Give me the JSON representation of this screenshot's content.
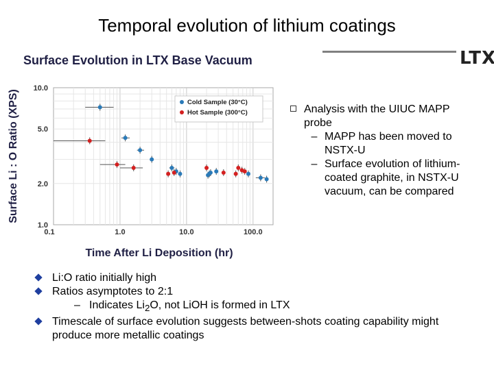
{
  "slide_title": "Temporal evolution of lithium coatings",
  "banner": {
    "title": "Surface Evolution in LTX Base Vacuum",
    "logo_text": "LTX"
  },
  "right_text": {
    "bullet": "Analysis with the UIUC MAPP probe",
    "subs": [
      "Surface evolution of lithium-coated graphite, in NSTX-U vacuum, can be compared",
      "MAPP has been moved to NSTX-U"
    ]
  },
  "bottom_list": {
    "item1": "Li:O ratio initially high",
    "item2": "Ratios asymptotes to 2:1",
    "sub_prefix": "Indicates Li",
    "sub_sub": "2",
    "sub_suffix": "O, not LiOH is formed in LTX",
    "item3": "Timescale of surface evolution suggests between-shots coating capability might produce more metallic coatings"
  },
  "colors": {
    "cold": "#2a7ab8",
    "hot": "#d42020",
    "frame": "#a8a8a8"
  },
  "chart_data": {
    "type": "scatter",
    "xlabel": "Time After Li Deposition (hr)",
    "ylabel": "Surface Li : O Ratio (XPS)",
    "x_scale": "log",
    "y_scale": "log",
    "xlim": [
      0.1,
      200
    ],
    "ylim": [
      1.0,
      10.0
    ],
    "x_ticks": [
      0.1,
      1.0,
      10.0,
      100.0
    ],
    "x_tick_labels": [
      "0.1",
      "1.0",
      "10.0",
      "100.0"
    ],
    "y_ticks": [
      1.0,
      2.0,
      5.0,
      10.0
    ],
    "y_tick_labels": [
      "1.0",
      "2.0",
      "5.0",
      "10.0"
    ],
    "grid": true,
    "legend_position": "top-right",
    "series": [
      {
        "name": "Cold Sample (30°C)",
        "color": "#2a7ab8",
        "points": [
          {
            "x": 0.5,
            "y": 7.2,
            "xerr": [
              0.3,
              0.8
            ]
          },
          {
            "x": 1.2,
            "y": 4.3,
            "xerr": [
              1.05,
              1.4
            ]
          },
          {
            "x": 2.0,
            "y": 3.5,
            "xerr": [
              1.8,
              2.3
            ]
          },
          {
            "x": 3.0,
            "y": 3.0
          },
          {
            "x": 6.0,
            "y": 2.6,
            "xerr": [
              5.5,
              6.6
            ]
          },
          {
            "x": 7.0,
            "y": 2.45
          },
          {
            "x": 8.0,
            "y": 2.35
          },
          {
            "x": 21.0,
            "y": 2.3
          },
          {
            "x": 22.0,
            "y": 2.35
          },
          {
            "x": 23.0,
            "y": 2.4
          },
          {
            "x": 28.0,
            "y": 2.45
          },
          {
            "x": 85.0,
            "y": 2.35
          },
          {
            "x": 130.0,
            "y": 2.2,
            "xerr": [
              110,
              150
            ]
          },
          {
            "x": 160.0,
            "y": 2.15
          }
        ]
      },
      {
        "name": "Hot Sample (300°C)",
        "color": "#d42020",
        "points": [
          {
            "x": 0.35,
            "y": 4.1,
            "xerr": [
              0.1,
              0.6
            ]
          },
          {
            "x": 0.9,
            "y": 2.75,
            "xerr": [
              0.5,
              1.2
            ]
          },
          {
            "x": 1.6,
            "y": 2.6,
            "xerr": [
              1.0,
              2.2
            ]
          },
          {
            "x": 5.3,
            "y": 2.35
          },
          {
            "x": 6.5,
            "y": 2.4
          },
          {
            "x": 20.0,
            "y": 2.6
          },
          {
            "x": 36.0,
            "y": 2.4
          },
          {
            "x": 55.0,
            "y": 2.35
          },
          {
            "x": 60.0,
            "y": 2.6
          },
          {
            "x": 68.0,
            "y": 2.5
          },
          {
            "x": 75.0,
            "y": 2.45
          }
        ]
      }
    ]
  }
}
